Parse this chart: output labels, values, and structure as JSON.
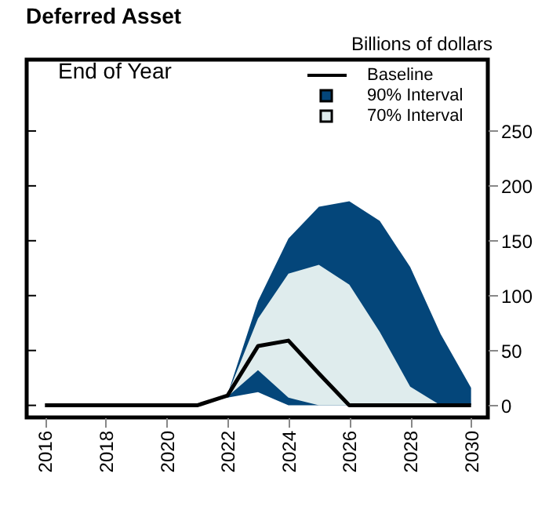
{
  "chart_data": {
    "type": "line",
    "title": "Deferred Asset",
    "ylabel": "Billions of dollars",
    "annotations": [
      "End of Year"
    ],
    "xlim": [
      2015.4,
      2030.55
    ],
    "xticks": [
      2016,
      2018,
      2020,
      2022,
      2024,
      2026,
      2028,
      2030
    ],
    "ylim": [
      -11,
      315
    ],
    "yticks": [
      0,
      50,
      100,
      150,
      200,
      250
    ],
    "series": [
      {
        "name": "90% Interval",
        "type": "area",
        "color": "#04467a",
        "x": [
          2022,
          2023,
          2024,
          2025,
          2026,
          2027,
          2028,
          2029,
          2030
        ],
        "values": [
          null,
          null,
          null,
          null,
          null,
          null,
          null,
          null,
          null
        ],
        "lower": [
          7,
          12,
          0,
          0,
          0,
          0,
          0,
          0,
          0
        ],
        "upper": [
          10,
          95,
          152,
          181,
          186,
          168,
          126,
          65,
          16
        ]
      },
      {
        "name": "70% Interval",
        "type": "area",
        "color": "#dfeced",
        "x": [
          2022,
          2023,
          2024,
          2025,
          2026,
          2027,
          2028,
          2029,
          2030
        ],
        "values": [
          null,
          null,
          null,
          null,
          null,
          null,
          null,
          null,
          null
        ],
        "lower": [
          8,
          32,
          7,
          0,
          0,
          0,
          0,
          0,
          0
        ],
        "upper": [
          10,
          79,
          120,
          128,
          110,
          67,
          17,
          0,
          0
        ]
      },
      {
        "name": "Baseline",
        "color": "#000000",
        "x": [
          2016,
          2017,
          2018,
          2019,
          2020,
          2021,
          2022,
          2023,
          2024,
          2025,
          2026,
          2027,
          2028,
          2029,
          2030
        ],
        "values": [
          0,
          0,
          0,
          0,
          0,
          0,
          9,
          54,
          59,
          29,
          0,
          0,
          0,
          0,
          0
        ]
      }
    ],
    "legend": "top right",
    "grid": false,
    "line_style": "solid",
    "marker": "none"
  }
}
